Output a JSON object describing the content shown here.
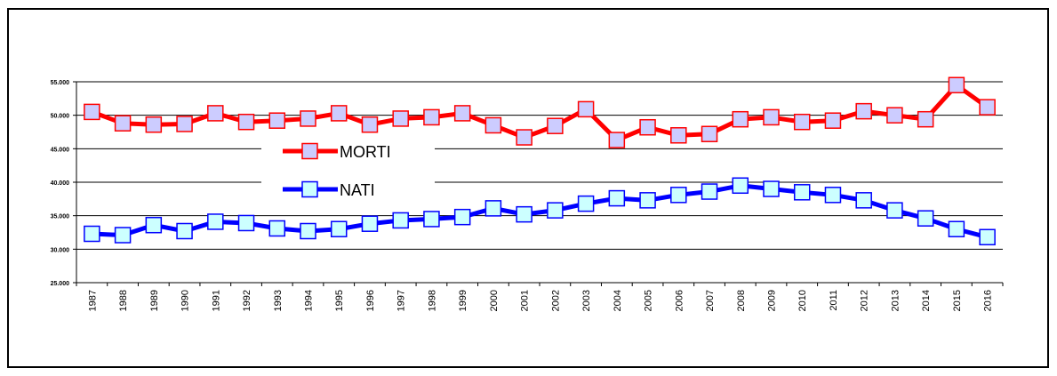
{
  "chart_data": {
    "type": "line",
    "title": "",
    "xlabel": "",
    "ylabel": "",
    "categories": [
      "1987",
      "1988",
      "1989",
      "1990",
      "1991",
      "1992",
      "1993",
      "1994",
      "1995",
      "1996",
      "1997",
      "1998",
      "1999",
      "2000",
      "2001",
      "2002",
      "2003",
      "2004",
      "2005",
      "2006",
      "2007",
      "2008",
      "2009",
      "2010",
      "2011",
      "2012",
      "2013",
      "2014",
      "2015",
      "2016"
    ],
    "ylim": [
      25000,
      55000
    ],
    "yticks": [
      25000,
      30000,
      35000,
      40000,
      45000,
      50000,
      55000
    ],
    "ytick_labels": [
      "25.000",
      "30.000",
      "35.000",
      "40.000",
      "45.000",
      "50.000",
      "55.000"
    ],
    "grid": "horizontal",
    "legend_position": "inside-left",
    "series": [
      {
        "name": "MORTI",
        "color": "#ff0000",
        "marker_fill": "#ccccff",
        "values": [
          50500,
          48800,
          48600,
          48700,
          50300,
          49000,
          49200,
          49500,
          50300,
          48600,
          49500,
          49700,
          50300,
          48500,
          46700,
          48400,
          50900,
          46300,
          48200,
          47000,
          47200,
          49400,
          49700,
          49000,
          49200,
          50600,
          50000,
          49400,
          54500,
          51200
        ]
      },
      {
        "name": "NATI",
        "color": "#0000ff",
        "marker_fill": "#ccffff",
        "values": [
          32300,
          32100,
          33600,
          32700,
          34100,
          33900,
          33100,
          32700,
          33000,
          33800,
          34300,
          34500,
          34800,
          36100,
          35200,
          35800,
          36800,
          37600,
          37300,
          38100,
          38600,
          39500,
          39000,
          38500,
          38100,
          37300,
          35800,
          34600,
          33000,
          31800
        ]
      }
    ]
  }
}
